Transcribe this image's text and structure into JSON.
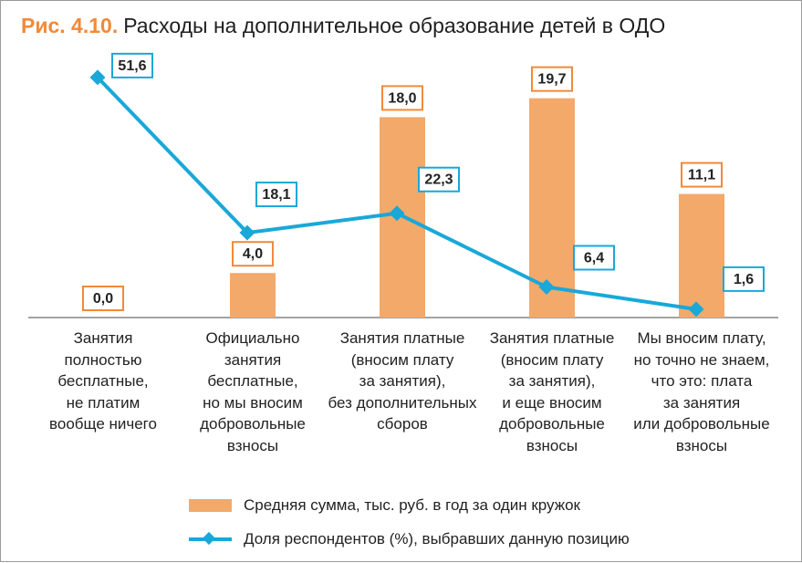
{
  "title": {
    "fig": "Рис. 4.10.",
    "text": "Расходы на дополнительное образование детей в ОДО"
  },
  "colors": {
    "bar": "#f3a96a",
    "bar_label_border": "#f08a3a",
    "line": "#19a8d8",
    "title_fig": "#f08a3a"
  },
  "chart_data": {
    "type": "bar+line",
    "categories": [
      "Занятия\nполностью\nбесплатные,\nне платим\nвообще ничего",
      "Официально\nзанятия\nбесплатные,\nно мы вносим\nдобровольные\nвзносы",
      "Занятия платные\n(вносим плату\nза занятия),\nбез дополнительных\nсборов",
      "Занятия платные\n(вносим плату\nза занятия),\nи еще вносим\nдобровольные\nвзносы",
      "Мы вносим плату,\nно точно не знаем,\nчто это: плата\nза занятия\nили добровольные\nвзносы"
    ],
    "series": [
      {
        "name": "Средняя сумма, тыс. руб. в год за один кружок",
        "type": "bar",
        "values": [
          0.0,
          4.0,
          18.0,
          19.7,
          11.1
        ],
        "labels": [
          "0,0",
          "4,0",
          "18,0",
          "19,7",
          "11,1"
        ]
      },
      {
        "name": "Доля респондентов (%), выбравших данную позицию",
        "type": "line",
        "values": [
          51.6,
          18.1,
          22.3,
          6.4,
          1.6
        ],
        "labels": [
          "51,6",
          "18,1",
          "22,3",
          "6,4",
          "1,6"
        ]
      }
    ],
    "legend": "bottom",
    "grid": false
  }
}
